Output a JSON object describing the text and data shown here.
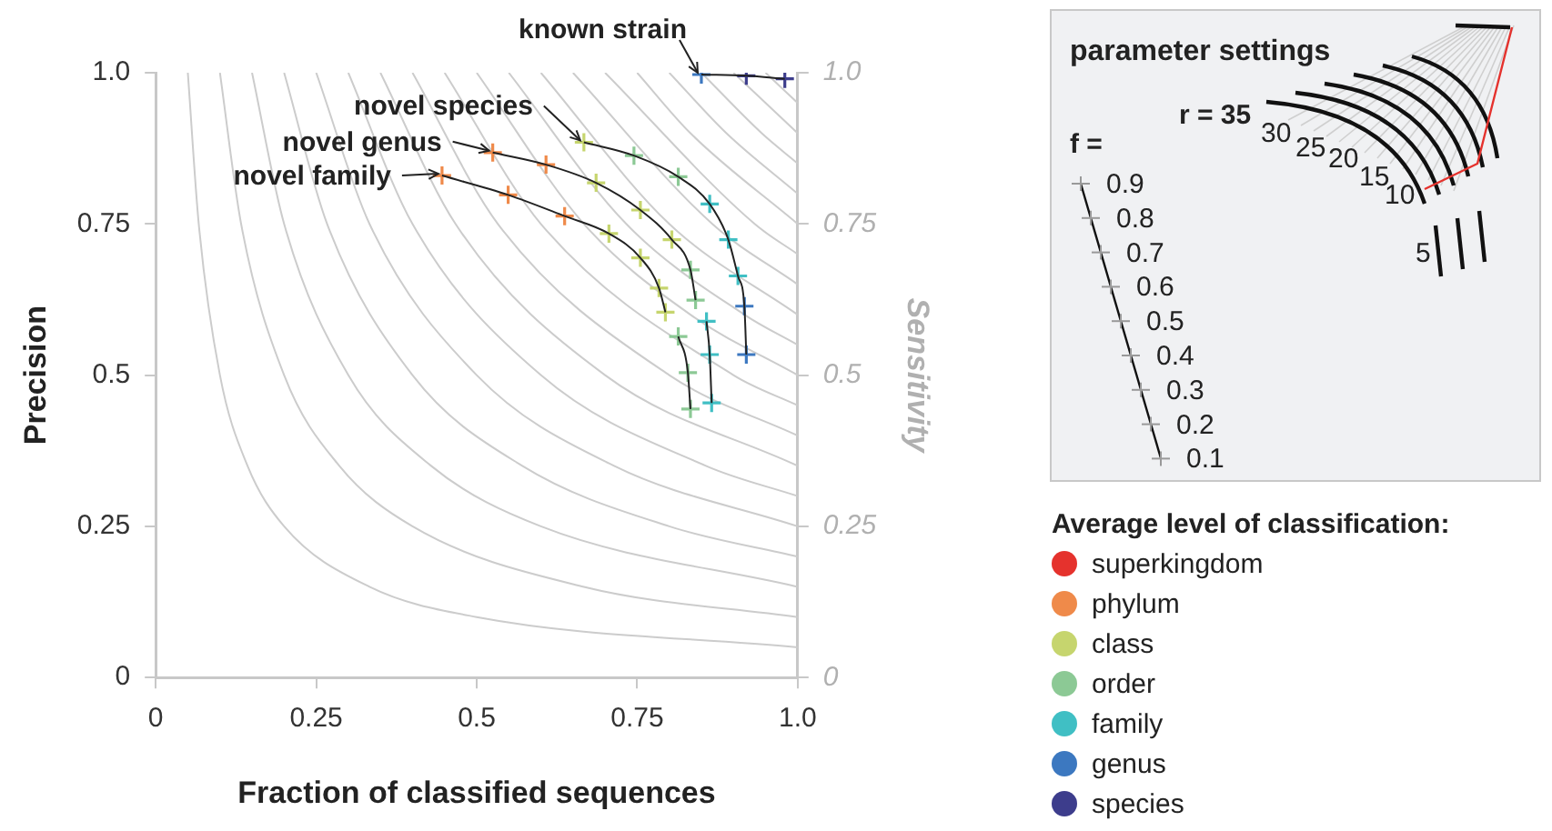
{
  "chart_data": {
    "type": "scatter",
    "xlabel": "Fraction of classified sequences",
    "ylabel": "Precision",
    "y2label": "Sensitivity",
    "legend_title": "Average level of classification:",
    "legend": "bottom right",
    "marker": "cross",
    "grid": false,
    "xlim": [
      0,
      1
    ],
    "xticks": [
      0,
      0.25,
      0.5,
      0.75,
      {
        "value": 1,
        "label": "1.0"
      }
    ],
    "ylim": [
      0,
      1
    ],
    "yticks": [
      0,
      0.25,
      0.5,
      0.75,
      {
        "value": 1,
        "label": "1.0"
      }
    ],
    "y2lim": [
      0,
      1
    ],
    "y2ticks": [
      0,
      0.25,
      0.5,
      0.75,
      {
        "value": 1,
        "label": "1.0"
      }
    ],
    "series": [
      {
        "type": "line",
        "marker": "none",
        "color": "#cccccc",
        "x": [
          0.05,
          0.067,
          0.1,
          0.143,
          0.2,
          0.333,
          0.5,
          1
        ],
        "values": [
          1,
          0.75,
          0.5,
          0.35,
          0.25,
          0.15,
          0.1,
          0.05
        ]
      },
      {
        "type": "line",
        "marker": "none",
        "color": "#cccccc",
        "x": [
          0.1,
          0.133,
          0.2,
          0.286,
          0.4,
          0.667,
          1
        ],
        "values": [
          1,
          0.75,
          0.5,
          0.35,
          0.25,
          0.15,
          0.1
        ]
      },
      {
        "type": "line",
        "marker": "none",
        "color": "#cccccc",
        "x": [
          0.15,
          0.2,
          0.3,
          0.429,
          0.6,
          1
        ],
        "values": [
          1,
          0.75,
          0.5,
          0.35,
          0.25,
          0.15
        ]
      },
      {
        "type": "line",
        "marker": "none",
        "color": "#cccccc",
        "x": [
          0.2,
          0.267,
          0.4,
          0.571,
          0.8,
          1
        ],
        "values": [
          1,
          0.75,
          0.5,
          0.35,
          0.25,
          0.2
        ]
      },
      {
        "type": "line",
        "marker": "none",
        "color": "#cccccc",
        "x": [
          0.25,
          0.333,
          0.5,
          0.714,
          1
        ],
        "values": [
          1,
          0.75,
          0.5,
          0.35,
          0.25
        ]
      },
      {
        "type": "line",
        "marker": "none",
        "color": "#cccccc",
        "x": [
          0.3,
          0.4,
          0.6,
          0.857,
          1
        ],
        "values": [
          1,
          0.75,
          0.5,
          0.35,
          0.3
        ]
      },
      {
        "type": "line",
        "marker": "none",
        "color": "#cccccc",
        "x": [
          0.35,
          0.467,
          0.7,
          1
        ],
        "values": [
          1,
          0.75,
          0.5,
          0.35
        ]
      },
      {
        "type": "line",
        "marker": "none",
        "color": "#cccccc",
        "x": [
          0.4,
          0.533,
          0.8,
          1
        ],
        "values": [
          1,
          0.75,
          0.5,
          0.4
        ]
      },
      {
        "type": "line",
        "marker": "none",
        "color": "#cccccc",
        "x": [
          0.45,
          0.6,
          0.9,
          1
        ],
        "values": [
          1,
          0.75,
          0.5,
          0.45
        ]
      },
      {
        "type": "line",
        "marker": "none",
        "color": "#cccccc",
        "x": [
          0.5,
          0.667,
          0.833,
          1
        ],
        "values": [
          1,
          0.75,
          0.6,
          0.5
        ]
      },
      {
        "type": "line",
        "marker": "none",
        "color": "#cccccc",
        "x": [
          0.55,
          0.733,
          0.917,
          1
        ],
        "values": [
          1,
          0.75,
          0.6,
          0.55
        ]
      },
      {
        "type": "line",
        "marker": "none",
        "color": "#cccccc",
        "x": [
          0.6,
          0.8,
          1
        ],
        "values": [
          1,
          0.75,
          0.6
        ]
      },
      {
        "type": "line",
        "marker": "none",
        "color": "#cccccc",
        "x": [
          0.65,
          0.867,
          1
        ],
        "values": [
          1,
          0.75,
          0.65
        ]
      },
      {
        "type": "line",
        "marker": "none",
        "color": "#cccccc",
        "x": [
          0.7,
          0.933,
          1
        ],
        "values": [
          1,
          0.75,
          0.7
        ]
      },
      {
        "type": "line",
        "marker": "none",
        "color": "#cccccc",
        "x": [
          0.75,
          0.833,
          1
        ],
        "values": [
          1,
          0.9,
          0.75
        ]
      },
      {
        "type": "line",
        "marker": "none",
        "color": "#cccccc",
        "x": [
          0.8,
          0.889,
          1
        ],
        "values": [
          1,
          0.9,
          0.8
        ]
      },
      {
        "type": "line",
        "marker": "none",
        "color": "#cccccc",
        "x": [
          0.85,
          0.944,
          1
        ],
        "values": [
          1,
          0.9,
          0.85
        ]
      },
      {
        "type": "line",
        "marker": "none",
        "color": "#cccccc",
        "x": [
          0.9,
          1
        ],
        "values": [
          1,
          0.9
        ]
      },
      {
        "type": "line",
        "marker": "none",
        "color": "#cccccc",
        "x": [
          0.95,
          1
        ],
        "values": [
          1,
          0.95
        ]
      },
      {
        "name": "superkingdom",
        "color": "#e5322d"
      },
      {
        "name": "phylum",
        "color": "#ef8a4a",
        "x": [
          0.446,
          0.549,
          0.637,
          0.525,
          0.608
        ],
        "values": [
          0.83,
          0.798,
          0.763,
          0.868,
          0.848
        ]
      },
      {
        "name": "class",
        "color": "#c6d56e",
        "x": [
          0.706,
          0.755,
          0.784,
          0.794,
          0.686,
          0.755,
          0.804,
          0.667
        ],
        "values": [
          0.734,
          0.694,
          0.644,
          0.604,
          0.818,
          0.773,
          0.724,
          0.885
        ]
      },
      {
        "name": "order",
        "color": "#8cc995",
        "x": [
          0.814,
          0.829,
          0.833,
          0.833,
          0.841,
          0.745,
          0.814
        ],
        "values": [
          0.564,
          0.504,
          0.444,
          0.674,
          0.624,
          0.863,
          0.828
        ]
      },
      {
        "name": "family",
        "color": "#40bfc4",
        "x": [
          0.858,
          0.863,
          0.866,
          0.863,
          0.892,
          0.907
        ],
        "values": [
          0.589,
          0.534,
          0.454,
          0.783,
          0.724,
          0.664
        ]
      },
      {
        "name": "genus",
        "color": "#3c78c0",
        "x": [
          0.917,
          0.92,
          0.85
        ],
        "values": [
          0.614,
          0.534,
          0.997
        ]
      },
      {
        "name": "species",
        "color": "#3d3d8c",
        "x": [
          0.92,
          0.98
        ],
        "values": [
          0.995,
          0.99
        ]
      },
      {
        "type": "line",
        "marker": "none",
        "color": "#222222",
        "x": [
          0.446,
          0.549,
          0.637,
          0.706,
          0.755,
          0.784,
          0.794,
          0.804,
          0.814,
          0.829,
          0.833
        ],
        "values": [
          0.83,
          0.798,
          0.763,
          0.734,
          0.694,
          0.644,
          0.604,
          null,
          0.564,
          0.504,
          0.444
        ]
      },
      {
        "type": "line",
        "marker": "none",
        "color": "#222222",
        "x": [
          0.525,
          0.608,
          0.686,
          0.755,
          0.804,
          0.833,
          0.841,
          0.85,
          0.858,
          0.863,
          0.866
        ],
        "values": [
          0.868,
          0.848,
          0.818,
          0.773,
          0.724,
          0.674,
          0.624,
          null,
          0.589,
          0.534,
          0.454
        ]
      },
      {
        "type": "line",
        "marker": "none",
        "color": "#222222",
        "x": [
          0.667,
          0.745,
          0.814,
          0.863,
          0.892,
          0.907,
          0.917,
          0.92
        ],
        "values": [
          0.885,
          0.863,
          0.828,
          0.783,
          0.724,
          0.664,
          0.614,
          0.534
        ]
      },
      {
        "type": "line",
        "marker": "none",
        "color": "#222222",
        "x": [
          0.85,
          0.92,
          0.98
        ],
        "values": [
          0.997,
          0.995,
          0.99
        ]
      }
    ],
    "annotations": [
      {
        "text": "known strain",
        "x": 0.85,
        "y": 0.997
      },
      {
        "text": "novel species",
        "x": 0.667,
        "y": 0.885
      },
      {
        "text": "novel genus",
        "x": 0.525,
        "y": 0.868
      },
      {
        "text": "novel family",
        "x": 0.446,
        "y": 0.83
      },
      "parameter settings",
      "f =",
      "0.9",
      "0.8",
      "0.7",
      "0.6",
      "0.5",
      "0.4",
      "0.3",
      "0.2",
      "0.1",
      "r = 35",
      "30",
      "25",
      "20",
      "15",
      "10",
      "5"
    ]
  }
}
